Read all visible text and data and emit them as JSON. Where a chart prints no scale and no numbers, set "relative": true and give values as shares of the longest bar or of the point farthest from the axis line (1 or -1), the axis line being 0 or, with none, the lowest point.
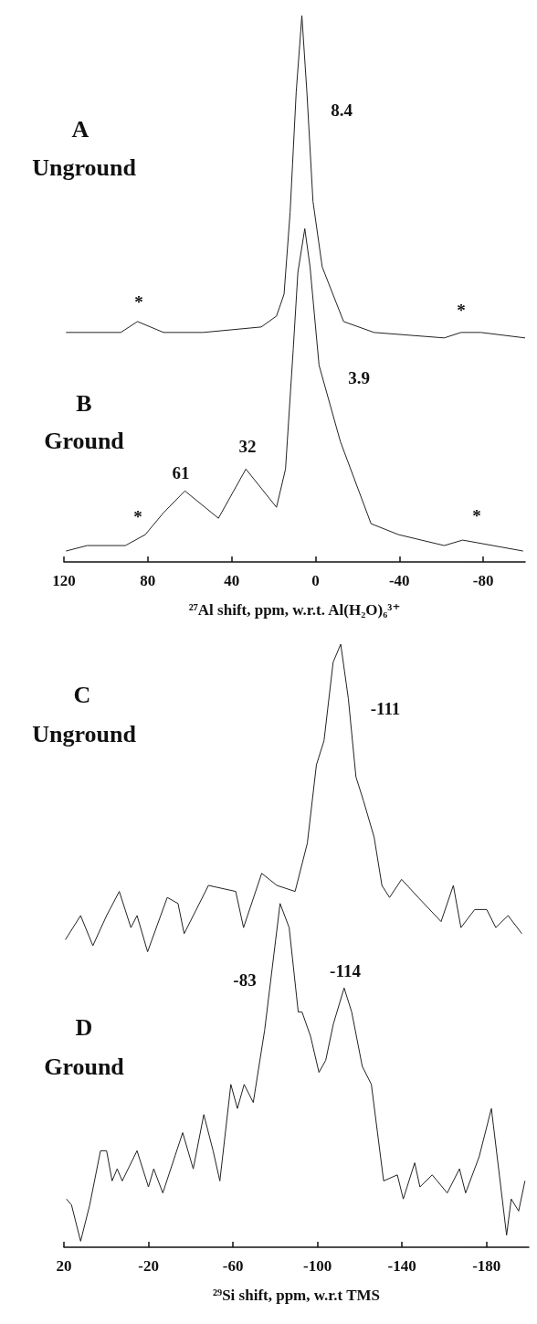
{
  "chart_data": [
    {
      "type": "line",
      "relative": true,
      "xlim": [
        120,
        -100
      ],
      "xticks": [
        120,
        80,
        40,
        0,
        -40,
        -80
      ],
      "xlabel": "²⁷Al shift, ppm, w.r.t. Al(H₂O)₆³⁺",
      "series": [
        {
          "color": "#222222",
          "x": [
            119,
            92.9,
            84.9,
            72.5,
            61.6,
            53.6,
            25.9,
            18.6,
            15.0,
            12.1,
            9.2,
            6.5,
            4.1,
            1.2,
            -3.2,
            -13.4,
            -27.9,
            -61.4,
            -69.4,
            -78.9,
            -100
          ],
          "values": [
            0.42,
            0.42,
            0.44,
            0.42,
            0.42,
            0.42,
            0.43,
            0.45,
            0.49,
            0.64,
            0.86,
            1,
            0.86,
            0.66,
            0.54,
            0.44,
            0.42,
            0.41,
            0.42,
            0.42,
            0.41
          ]
        },
        {
          "color": "#222222",
          "x": [
            119,
            108.9,
            90.7,
            81.2,
            72.5,
            62.3,
            46.3,
            33.2,
            18.6,
            14.3,
            10.6,
            8.4,
            5.1,
            2.6,
            -1.7,
            -11.9,
            -26.5,
            -39.6,
            -61.4,
            -70.2,
            -99
          ],
          "values": [
            0.02,
            0.03,
            0.03,
            0.05,
            0.09,
            0.13,
            0.08,
            0.17,
            0.1,
            0.17,
            0.39,
            0.53,
            0.61,
            0.54,
            0.36,
            0.22,
            0.07,
            0.05,
            0.03,
            0.04,
            0.02
          ]
        }
      ],
      "annotations": [
        "A",
        "Unground",
        "B",
        "Ground",
        "8.4",
        "*",
        "*",
        "3.9",
        "61",
        "32",
        "*",
        "*"
      ]
    },
    {
      "type": "line",
      "relative": true,
      "xlim": [
        20,
        -200
      ],
      "xticks": [
        20,
        -20,
        -60,
        -100,
        -140,
        -180
      ],
      "xlabel": "²⁹Si shift, ppm, w.r.t TMS",
      "series": [
        {
          "color": "#222222",
          "x": [
            19.3,
            12.1,
            6.3,
            -0.2,
            -6.2,
            -11.7,
            -14.6,
            -19.6,
            -28.9,
            -34,
            -36.9,
            -48.4,
            -61.3,
            -65,
            -73.6,
            -80.8,
            -89.4,
            -95.2,
            -99.5,
            -103.1,
            -107.4,
            -111,
            -114.6,
            -118.2,
            -121.8,
            -126.8,
            -130.5,
            -134.1,
            -139.8,
            -147.7,
            -158.5,
            -164.3,
            -167.9,
            -174.4,
            -180.1,
            -184.4,
            -190.2,
            -196.7
          ],
          "values": [
            0.51,
            0.55,
            0.5,
            0.55,
            0.59,
            0.53,
            0.55,
            0.49,
            0.58,
            0.57,
            0.52,
            0.6,
            0.59,
            0.53,
            0.62,
            0.6,
            0.59,
            0.67,
            0.8,
            0.84,
            0.97,
            1,
            0.91,
            0.78,
            0.74,
            0.68,
            0.6,
            0.58,
            0.61,
            0.58,
            0.54,
            0.6,
            0.53,
            0.56,
            0.56,
            0.53,
            0.55,
            0.52
          ]
        },
        {
          "color": "#222222",
          "x": [
            18.8,
            16.4,
            12.1,
            7.8,
            2.7,
            -0.2,
            -2.8,
            -5.2,
            -7.6,
            -14.6,
            -20,
            -22.5,
            -26.8,
            -36.2,
            -41.2,
            -46.2,
            -50.6,
            -53.8,
            -59,
            -62.1,
            -65.3,
            -69.6,
            -75,
            -82.3,
            -86.6,
            -90.9,
            -92.7,
            -96.7,
            -100.7,
            -103.9,
            -107.5,
            -112.6,
            -116.2,
            -121.2,
            -125.5,
            -131.3,
            -137.8,
            -140.6,
            -146,
            -148.5,
            -154.3,
            -161.4,
            -167.2,
            -170.1,
            -176.5,
            -182.3,
            -189.5,
            -191.7,
            -195.2,
            -198.2
          ],
          "values": [
            0.08,
            0.07,
            0.01,
            0.07,
            0.16,
            0.16,
            0.11,
            0.13,
            0.11,
            0.16,
            0.1,
            0.13,
            0.09,
            0.19,
            0.13,
            0.22,
            0.16,
            0.11,
            0.27,
            0.23,
            0.27,
            0.24,
            0.36,
            0.57,
            0.53,
            0.39,
            0.39,
            0.35,
            0.29,
            0.31,
            0.37,
            0.43,
            0.39,
            0.3,
            0.27,
            0.11,
            0.12,
            0.08,
            0.14,
            0.1,
            0.12,
            0.09,
            0.13,
            0.09,
            0.15,
            0.23,
            0.02,
            0.08,
            0.06,
            0.11
          ]
        }
      ],
      "annotations": [
        "C",
        "Unground",
        "D",
        "Ground",
        "-111",
        "-83",
        "-114"
      ]
    }
  ]
}
